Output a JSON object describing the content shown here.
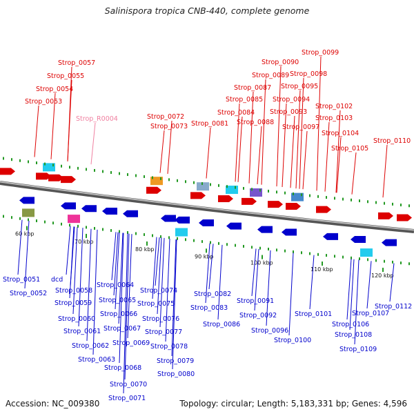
{
  "title": "Salinispora tropica CNB-440, complete genome",
  "footer": {
    "accession": "Accession: NC_009380",
    "summary": "Topology: circular; Length: 5,183,331 bp; Genes: 4,596"
  },
  "colors": {
    "forward_strand": "#dd0000",
    "reverse_strand": "#0000cc",
    "rna_label": "#f080a0",
    "backbone": "#8a8a8a",
    "tick": "#229922"
  },
  "axis": {
    "unit": "kbp",
    "ticks": [
      "60 kbp",
      "70 kbp",
      "80 kbp",
      "90 kbp",
      "100 kbp",
      "110 kbp",
      "120 kbp"
    ]
  },
  "top_labels": [
    {
      "name": "Strop_0053",
      "type": "forward"
    },
    {
      "name": "Strop_0054",
      "type": "forward"
    },
    {
      "name": "Strop_0055",
      "type": "forward"
    },
    {
      "name": "Strop_0057",
      "type": "forward"
    },
    {
      "name": "Strop_R0004",
      "type": "rna"
    },
    {
      "name": "Strop_0072",
      "type": "forward"
    },
    {
      "name": "Strop_0073",
      "type": "forward"
    },
    {
      "name": "Strop_0081",
      "type": "forward"
    },
    {
      "name": "Strop_0084",
      "type": "forward"
    },
    {
      "name": "Strop_0085",
      "type": "forward"
    },
    {
      "name": "Strop_0087",
      "type": "forward"
    },
    {
      "name": "Strop_0088",
      "type": "forward"
    },
    {
      "name": "Strop_0089",
      "type": "forward"
    },
    {
      "name": "Strop_0090",
      "type": "forward"
    },
    {
      "name": "Strop_0093",
      "type": "forward"
    },
    {
      "name": "Strop_0094",
      "type": "forward"
    },
    {
      "name": "Strop_0095",
      "type": "forward"
    },
    {
      "name": "Strop_0097",
      "type": "forward"
    },
    {
      "name": "Strop_0098",
      "type": "forward"
    },
    {
      "name": "Strop_0099",
      "type": "forward"
    },
    {
      "name": "Strop_0102",
      "type": "forward"
    },
    {
      "name": "Strop_0103",
      "type": "forward"
    },
    {
      "name": "Strop_0104",
      "type": "forward"
    },
    {
      "name": "Strop_0105",
      "type": "forward"
    },
    {
      "name": "Strop_0110",
      "type": "forward"
    }
  ],
  "bottom_labels": [
    {
      "name": "Strop_0051"
    },
    {
      "name": "Strop_0052"
    },
    {
      "name": "dcd"
    },
    {
      "name": "Strop_0058"
    },
    {
      "name": "Strop_0059"
    },
    {
      "name": "Strop_0060"
    },
    {
      "name": "Strop_0061"
    },
    {
      "name": "Strop_0062"
    },
    {
      "name": "Strop_0063"
    },
    {
      "name": "Strop_0064"
    },
    {
      "name": "Strop_0065"
    },
    {
      "name": "Strop_0066"
    },
    {
      "name": "Strop_0067"
    },
    {
      "name": "Strop_0068"
    },
    {
      "name": "Strop_0069"
    },
    {
      "name": "Strop_0070"
    },
    {
      "name": "Strop_0071"
    },
    {
      "name": "Strop_0074"
    },
    {
      "name": "Strop_0075"
    },
    {
      "name": "Strop_0076"
    },
    {
      "name": "Strop_0077"
    },
    {
      "name": "Strop_0078"
    },
    {
      "name": "Strop_0079"
    },
    {
      "name": "Strop_0080"
    },
    {
      "name": "Strop_0082"
    },
    {
      "name": "Strop_0083"
    },
    {
      "name": "Strop_0086"
    },
    {
      "name": "Strop_0091"
    },
    {
      "name": "Strop_0092"
    },
    {
      "name": "Strop_0096"
    },
    {
      "name": "Strop_0100"
    },
    {
      "name": "Strop_0101"
    },
    {
      "name": "Strop_0106"
    },
    {
      "name": "Strop_0107"
    },
    {
      "name": "Strop_0108"
    },
    {
      "name": "Strop_0109"
    },
    {
      "name": "Strop_0112"
    }
  ]
}
